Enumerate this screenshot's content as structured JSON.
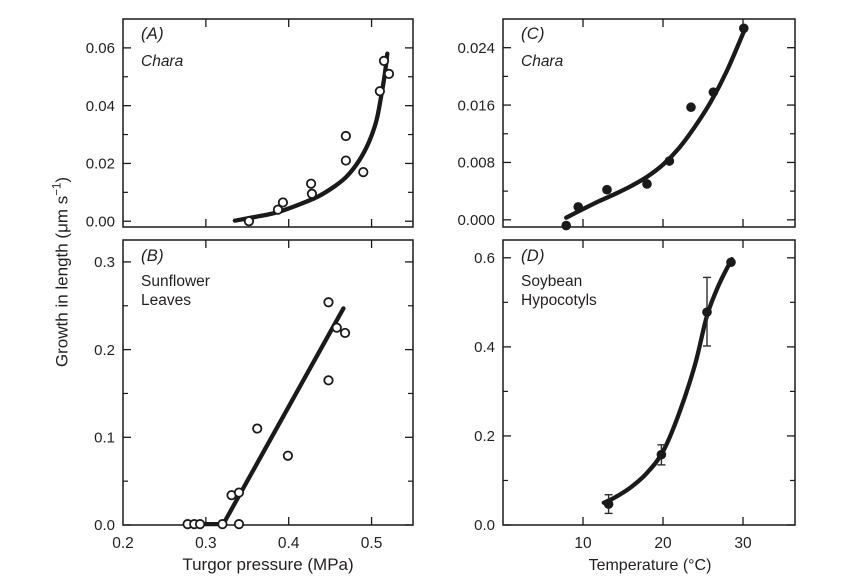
{
  "figure": {
    "background": "#ffffff",
    "line_color": "#1a1a1a",
    "text_color": "#231f20",
    "ylabel_pre": "Growth in length (μm s",
    "ylabel_sup": "−1",
    "ylabel_post": ")",
    "x_axis_title_left": "Turgor pressure (MPa)",
    "x_axis_title_right": "Temperature (°C)"
  },
  "chart_data": [
    {
      "id": "A",
      "type": "scatter",
      "panel_label": "(A)",
      "subtitle_lines": [
        "Chara"
      ],
      "subtitle_italic": true,
      "marker": "open-circle",
      "xlabel": "Turgor pressure (MPa)",
      "ylabel": "Growth in length (μm s−1)",
      "xlim": [
        0.2,
        0.55
      ],
      "ylim": [
        -0.002,
        0.07
      ],
      "x_ticks": [
        0.3,
        0.4,
        0.5
      ],
      "x_tick_label_values": [],
      "x_tick_label_texts": [],
      "y_ticks": [
        0,
        0.02,
        0.04,
        0.06
      ],
      "y_tick_labels": [
        "0.00",
        "0.02",
        "0.04",
        "0.06"
      ],
      "y_minor_ticks": [
        0.01,
        0.03,
        0.05
      ],
      "points": [
        [
          0.352,
          0.0
        ],
        [
          0.387,
          0.004
        ],
        [
          0.393,
          0.0065
        ],
        [
          0.427,
          0.013
        ],
        [
          0.428,
          0.0095
        ],
        [
          0.469,
          0.021
        ],
        [
          0.469,
          0.0295
        ],
        [
          0.49,
          0.017
        ],
        [
          0.51,
          0.045
        ],
        [
          0.515,
          0.0555
        ],
        [
          0.521,
          0.051
        ]
      ],
      "curve": [
        [
          0.335,
          0.0002
        ],
        [
          0.36,
          0.0015
        ],
        [
          0.385,
          0.003
        ],
        [
          0.41,
          0.0055
        ],
        [
          0.435,
          0.0085
        ],
        [
          0.455,
          0.012
        ],
        [
          0.47,
          0.0155
        ],
        [
          0.485,
          0.021
        ],
        [
          0.497,
          0.0275
        ],
        [
          0.506,
          0.035
        ],
        [
          0.512,
          0.044
        ],
        [
          0.516,
          0.051
        ],
        [
          0.519,
          0.058
        ]
      ],
      "curve_smooth": true,
      "error_bars": []
    },
    {
      "id": "B",
      "type": "scatter",
      "panel_label": "(B)",
      "subtitle_lines": [
        "Sunflower",
        "Leaves"
      ],
      "subtitle_italic": false,
      "marker": "open-circle",
      "xlabel": "Turgor pressure (MPa)",
      "ylabel": "Growth in length (μm s−1)",
      "xlim": [
        0.2,
        0.55
      ],
      "ylim": [
        0,
        0.325
      ],
      "x_ticks": [
        0.3,
        0.4,
        0.5
      ],
      "x_tick_label_values": [
        0.2,
        0.3,
        0.4,
        0.5
      ],
      "x_tick_label_texts": [
        "0.2",
        "0.3",
        "0.4",
        "0.5"
      ],
      "y_ticks": [
        0,
        0.1,
        0.2,
        0.3
      ],
      "y_tick_labels": [
        "0.0",
        "0.1",
        "0.2",
        "0.3"
      ],
      "y_minor_ticks": [
        0.05,
        0.15,
        0.25
      ],
      "points": [
        [
          0.278,
          0.001
        ],
        [
          0.286,
          0.001
        ],
        [
          0.293,
          0.001
        ],
        [
          0.32,
          0.001
        ],
        [
          0.34,
          0.001
        ],
        [
          0.331,
          0.034
        ],
        [
          0.34,
          0.037
        ],
        [
          0.362,
          0.11
        ],
        [
          0.399,
          0.079
        ],
        [
          0.448,
          0.165
        ],
        [
          0.448,
          0.254
        ],
        [
          0.458,
          0.225
        ],
        [
          0.468,
          0.219
        ]
      ],
      "curve": [
        [
          0.278,
          0.001
        ],
        [
          0.321,
          0.001
        ],
        [
          0.466,
          0.247
        ]
      ],
      "curve_smooth": false,
      "error_bars": []
    },
    {
      "id": "C",
      "type": "scatter",
      "panel_label": "(C)",
      "subtitle_lines": [
        "Chara"
      ],
      "subtitle_italic": true,
      "marker": "filled-circle",
      "xlabel": "Temperature (°C)",
      "ylabel": "Growth in length (μm s−1)",
      "xlim": [
        0,
        36.5
      ],
      "ylim": [
        -0.001,
        0.028
      ],
      "x_ticks": [
        10,
        20,
        30
      ],
      "x_tick_label_values": [],
      "x_tick_label_texts": [],
      "y_ticks": [
        0,
        0.008,
        0.016,
        0.024
      ],
      "y_tick_labels": [
        "0.000",
        "0.008",
        "0.016",
        "0.024"
      ],
      "y_minor_ticks": [
        0.004,
        0.012,
        0.02
      ],
      "points": [
        [
          7.9,
          -0.0008
        ],
        [
          9.4,
          0.0018
        ],
        [
          13.0,
          0.0042
        ],
        [
          18.0,
          0.005
        ],
        [
          20.8,
          0.0082
        ],
        [
          23.5,
          0.0157
        ],
        [
          26.3,
          0.0178
        ],
        [
          30.1,
          0.0267
        ]
      ],
      "curve": [
        [
          7.9,
          0.0003
        ],
        [
          10,
          0.0015
        ],
        [
          12,
          0.0026
        ],
        [
          14,
          0.0036
        ],
        [
          16,
          0.0047
        ],
        [
          18,
          0.006
        ],
        [
          20,
          0.0077
        ],
        [
          22,
          0.01
        ],
        [
          24,
          0.013
        ],
        [
          26,
          0.0165
        ],
        [
          28,
          0.0208
        ],
        [
          30.2,
          0.0265
        ]
      ],
      "curve_smooth": true,
      "error_bars": []
    },
    {
      "id": "D",
      "type": "scatter",
      "panel_label": "(D)",
      "subtitle_lines": [
        "Soybean",
        "Hypocotyls"
      ],
      "subtitle_italic": false,
      "marker": "filled-circle",
      "xlabel": "Temperature (°C)",
      "ylabel": "Growth in length (μm s−1)",
      "xlim": [
        0,
        36.5
      ],
      "ylim": [
        0,
        0.64
      ],
      "x_ticks": [
        10,
        20,
        30
      ],
      "x_tick_label_values": [
        10,
        20,
        30
      ],
      "x_tick_label_texts": [
        "10",
        "20",
        "30"
      ],
      "y_ticks": [
        0,
        0.2,
        0.4,
        0.6
      ],
      "y_tick_labels": [
        "0.0",
        "0.2",
        "0.4",
        "0.6"
      ],
      "y_minor_ticks": [
        0.1,
        0.3,
        0.5
      ],
      "points": [
        [
          13.2,
          0.047
        ],
        [
          19.8,
          0.158
        ],
        [
          25.5,
          0.478
        ],
        [
          28.5,
          0.59
        ]
      ],
      "curve": [
        [
          12.6,
          0.05
        ],
        [
          14,
          0.062
        ],
        [
          16,
          0.085
        ],
        [
          18,
          0.117
        ],
        [
          20,
          0.165
        ],
        [
          22,
          0.25
        ],
        [
          24,
          0.36
        ],
        [
          25.5,
          0.47
        ],
        [
          27,
          0.54
        ],
        [
          28.6,
          0.597
        ]
      ],
      "curve_smooth": true,
      "error_bars": [
        {
          "x": 13.2,
          "y": 0.047,
          "lo": 0.026,
          "hi": 0.068
        },
        {
          "x": 19.8,
          "y": 0.158,
          "lo": 0.135,
          "hi": 0.18
        },
        {
          "x": 25.5,
          "y": 0.478,
          "lo": 0.402,
          "hi": 0.556
        }
      ]
    }
  ]
}
